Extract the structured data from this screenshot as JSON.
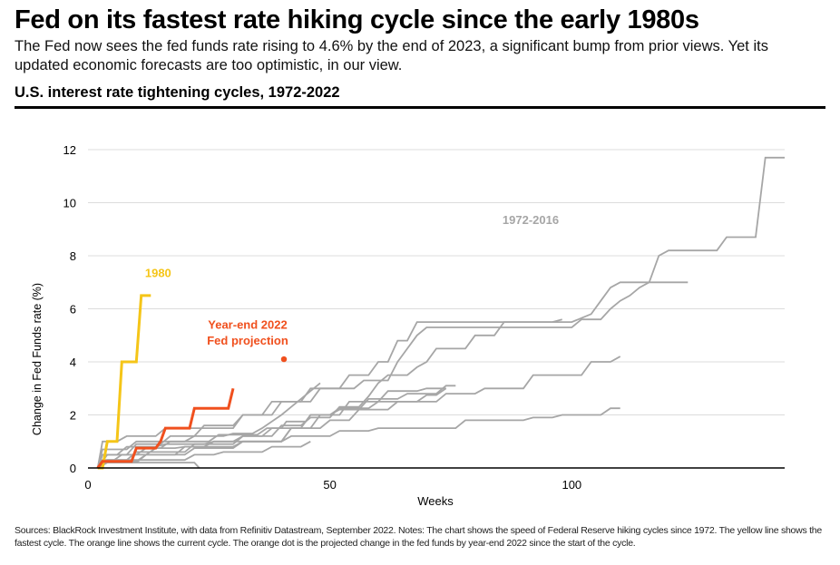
{
  "title": "Fed on its fastest rate hiking cycle since the early 1980s",
  "subtitle": "The Fed now sees the fed funds rate rising to 4.6% by the end of 2023, a significant bump from prior views. Yet its updated economic forecasts are too optimistic, in our view.",
  "section_title": "U.S. interest rate tightening cycles, 1972-2022",
  "footnote": "Sources: BlackRock Investment Institute, with data from Refinitiv Datastream, September 2022. Notes: The chart shows the speed of Federal Reserve hiking cycles since 1972. The yellow line shows the fastest cycle. The orange line shows the current cycle. The orange dot is the projected change in the fed funds by year-end 2022 since the start of the cycle.",
  "colors": {
    "gray": "#a6a6a6",
    "yellow": "#f5c518",
    "orange": "#f0501e",
    "axis": "#000000",
    "grid": "#dcdcdc"
  },
  "chart_data": {
    "type": "line",
    "xlabel": "Weeks",
    "ylabel": "Change in Fed Funds rate (%)",
    "xlim": [
      0,
      144
    ],
    "ylim": [
      0,
      12
    ],
    "x_ticks": [
      0,
      50,
      100
    ],
    "y_ticks": [
      0,
      2,
      4,
      6,
      8,
      10,
      12
    ],
    "grid": "horizontal",
    "annotations": [
      {
        "text": "1980",
        "color": "#f5c518",
        "x": 14.5,
        "y": 7.2
      },
      {
        "text": "Year-end 2022",
        "color": "#f0501e",
        "x": 33,
        "y": 5.25
      },
      {
        "text": "Fed projection",
        "color": "#f0501e",
        "x": 33,
        "y": 4.65
      },
      {
        "text": "1972-2016",
        "color": "#a6a6a6",
        "x": 91.5,
        "y": 9.2
      }
    ],
    "projection_point": {
      "x": 40.5,
      "y": 4.1
    },
    "series": [
      {
        "group": "1972-2016",
        "points": [
          [
            2,
            0
          ],
          [
            3,
            0.25
          ],
          [
            5,
            0.25
          ],
          [
            7,
            0.5
          ],
          [
            10,
            0.5
          ],
          [
            12,
            0.75
          ],
          [
            15,
            0.75
          ],
          [
            17,
            1
          ],
          [
            25,
            1
          ],
          [
            27,
            1.25
          ],
          [
            35,
            1.25
          ],
          [
            37,
            1.5
          ],
          [
            40,
            1.5
          ],
          [
            41,
            1.75
          ],
          [
            45,
            1.75
          ],
          [
            46,
            2
          ],
          [
            50,
            2
          ],
          [
            52,
            2.25
          ],
          [
            58,
            2.25
          ],
          [
            60,
            2.5
          ],
          [
            68,
            2.5
          ],
          [
            70,
            2.75
          ],
          [
            72,
            2.75
          ],
          [
            74,
            3
          ]
        ]
      },
      {
        "group": "1972-2016",
        "points": [
          [
            2,
            0
          ],
          [
            3,
            0.5
          ],
          [
            8,
            0.5
          ],
          [
            10,
            0.9
          ],
          [
            15,
            0.9
          ],
          [
            17,
            1.2
          ],
          [
            22,
            1.2
          ],
          [
            24,
            1.6
          ],
          [
            30,
            1.6
          ],
          [
            32,
            2
          ],
          [
            36,
            2
          ],
          [
            38,
            2.5
          ],
          [
            44,
            2.5
          ],
          [
            46,
            3
          ],
          [
            52,
            3
          ],
          [
            54,
            3.5
          ],
          [
            58,
            3.5
          ],
          [
            60,
            4
          ],
          [
            62,
            4
          ],
          [
            64,
            4.8
          ],
          [
            66,
            4.8
          ],
          [
            68,
            5.5
          ],
          [
            100,
            5.5
          ],
          [
            104,
            5.8
          ],
          [
            106,
            6.3
          ],
          [
            108,
            6.8
          ],
          [
            110,
            7
          ],
          [
            124,
            7
          ]
        ]
      },
      {
        "group": "1972-2016",
        "points": [
          [
            2,
            0
          ],
          [
            3,
            1
          ],
          [
            6,
            1
          ],
          [
            8,
            1.2
          ],
          [
            14,
            1.2
          ],
          [
            16,
            1.5
          ],
          [
            30,
            1.5
          ],
          [
            32,
            2
          ],
          [
            38,
            2
          ],
          [
            40,
            2.5
          ],
          [
            46,
            2.5
          ],
          [
            48,
            3
          ],
          [
            55,
            3
          ],
          [
            57,
            3.3
          ],
          [
            62,
            3.3
          ],
          [
            64,
            4
          ],
          [
            66,
            4.5
          ],
          [
            68,
            5
          ],
          [
            70,
            5.3
          ],
          [
            100,
            5.3
          ],
          [
            102,
            5.6
          ],
          [
            106,
            5.6
          ],
          [
            108,
            6
          ],
          [
            110,
            6.3
          ],
          [
            112,
            6.5
          ],
          [
            114,
            6.8
          ],
          [
            116,
            7
          ],
          [
            118,
            8
          ],
          [
            120,
            8.2
          ],
          [
            130,
            8.2
          ],
          [
            132,
            8.7
          ],
          [
            138,
            8.7
          ],
          [
            140,
            11.7
          ],
          [
            144,
            11.7
          ]
        ]
      },
      {
        "group": "1972-2016",
        "points": [
          [
            2,
            0
          ],
          [
            3,
            0.5
          ],
          [
            6,
            0.5
          ],
          [
            8,
            0.8
          ],
          [
            14,
            0.8
          ],
          [
            16,
            0.9
          ],
          [
            24,
            0.9
          ],
          [
            26,
            1
          ],
          [
            40,
            1
          ],
          [
            42,
            1.5
          ],
          [
            48,
            1.5
          ],
          [
            50,
            1.8
          ],
          [
            54,
            1.8
          ],
          [
            56,
            2.2
          ],
          [
            62,
            2.2
          ],
          [
            64,
            2.5
          ],
          [
            72,
            2.5
          ],
          [
            74,
            2.8
          ],
          [
            80,
            2.8
          ],
          [
            82,
            3
          ],
          [
            90,
            3
          ],
          [
            92,
            3.5
          ],
          [
            102,
            3.5
          ],
          [
            104,
            4
          ],
          [
            108,
            4
          ],
          [
            110,
            4.2
          ]
        ]
      },
      {
        "group": "1972-2016",
        "points": [
          [
            2,
            0
          ],
          [
            3,
            0.25
          ],
          [
            10,
            0.25
          ],
          [
            12,
            0.5
          ],
          [
            20,
            0.5
          ],
          [
            22,
            0.75
          ],
          [
            30,
            0.75
          ],
          [
            32,
            1
          ],
          [
            40,
            1
          ],
          [
            42,
            1.2
          ],
          [
            50,
            1.2
          ],
          [
            52,
            1.4
          ],
          [
            58,
            1.4
          ],
          [
            60,
            1.5
          ],
          [
            76,
            1.5
          ],
          [
            78,
            1.8
          ],
          [
            90,
            1.8
          ],
          [
            92,
            1.9
          ],
          [
            96,
            1.9
          ],
          [
            98,
            2
          ],
          [
            106,
            2
          ],
          [
            108,
            2.25
          ],
          [
            110,
            2.25
          ]
        ]
      },
      {
        "group": "1972-2016",
        "points": [
          [
            2,
            0
          ],
          [
            4,
            0.3
          ],
          [
            8,
            0.3
          ],
          [
            10,
            0.6
          ],
          [
            20,
            0.6
          ],
          [
            22,
            0.9
          ],
          [
            30,
            0.9
          ],
          [
            32,
            1.2
          ],
          [
            36,
            1.2
          ],
          [
            38,
            1.5
          ],
          [
            44,
            1.5
          ],
          [
            46,
            2
          ],
          [
            50,
            2
          ],
          [
            52,
            2.2
          ],
          [
            56,
            2.2
          ],
          [
            58,
            2.6
          ],
          [
            64,
            2.6
          ],
          [
            66,
            2.8
          ],
          [
            72,
            2.8
          ],
          [
            74,
            3.1
          ],
          [
            76,
            3.1
          ]
        ]
      },
      {
        "group": "1972-2016",
        "points": [
          [
            2,
            0
          ],
          [
            4,
            0.2
          ],
          [
            10,
            0.2
          ],
          [
            12,
            0.5
          ],
          [
            18,
            0.5
          ],
          [
            20,
            0.8
          ],
          [
            24,
            0.8
          ],
          [
            26,
            1
          ],
          [
            30,
            1
          ],
          [
            32,
            1.2
          ],
          [
            38,
            1.2
          ],
          [
            40,
            1.6
          ],
          [
            44,
            1.6
          ],
          [
            46,
            1.9
          ],
          [
            50,
            1.9
          ],
          [
            52,
            2.3
          ],
          [
            56,
            2.3
          ],
          [
            58,
            2.7
          ],
          [
            60,
            3.2
          ],
          [
            62,
            3.5
          ],
          [
            66,
            3.5
          ],
          [
            68,
            3.8
          ],
          [
            70,
            4
          ],
          [
            72,
            4.5
          ],
          [
            78,
            4.5
          ],
          [
            80,
            5
          ],
          [
            84,
            5
          ],
          [
            86,
            5.5
          ],
          [
            96,
            5.5
          ],
          [
            98,
            5.6
          ]
        ]
      },
      {
        "group": "1972-2016",
        "points": [
          [
            2,
            0
          ],
          [
            4,
            0.5
          ],
          [
            12,
            0.5
          ],
          [
            14,
            0.75
          ],
          [
            18,
            0.75
          ],
          [
            20,
            0.8
          ],
          [
            30,
            0.8
          ],
          [
            32,
            1
          ],
          [
            40,
            1
          ],
          [
            42,
            1.5
          ],
          [
            46,
            1.5
          ],
          [
            48,
            2
          ],
          [
            52,
            2
          ],
          [
            54,
            2.5
          ],
          [
            60,
            2.5
          ],
          [
            62,
            2.9
          ],
          [
            68,
            2.9
          ],
          [
            70,
            3
          ],
          [
            74,
            3
          ]
        ]
      },
      {
        "group": "1972-2016",
        "points": [
          [
            2,
            0
          ],
          [
            3,
            0.3
          ],
          [
            20,
            0.3
          ],
          [
            22,
            0.5
          ],
          [
            26,
            0.5
          ],
          [
            28,
            0.6
          ],
          [
            36,
            0.6
          ],
          [
            38,
            0.8
          ],
          [
            44,
            0.8
          ],
          [
            46,
            1
          ]
        ]
      },
      {
        "group": "1972-2016",
        "points": [
          [
            2,
            0
          ],
          [
            3,
            0.7
          ],
          [
            8,
            0.7
          ],
          [
            10,
            1
          ],
          [
            20,
            1
          ],
          [
            22,
            1.2
          ],
          [
            28,
            1.2
          ],
          [
            30,
            1.3
          ],
          [
            34,
            1.3
          ],
          [
            36,
            1.5
          ],
          [
            38,
            1.75
          ],
          [
            40,
            2
          ],
          [
            42,
            2.3
          ],
          [
            44,
            2.6
          ],
          [
            46,
            2.9
          ],
          [
            48,
            3.2
          ]
        ]
      },
      {
        "group": "1972-2016",
        "points": [
          [
            2,
            0
          ],
          [
            3,
            0.2
          ],
          [
            22,
            0.2
          ],
          [
            23,
            0
          ]
        ]
      },
      {
        "group": "1980",
        "color": "#f5c518",
        "points": [
          [
            2,
            0
          ],
          [
            3,
            0
          ],
          [
            4,
            1
          ],
          [
            6,
            1
          ],
          [
            7,
            4
          ],
          [
            10,
            4
          ],
          [
            11,
            6.5
          ],
          [
            13,
            6.5
          ]
        ]
      },
      {
        "group": "Current cycle",
        "color": "#f0501e",
        "points": [
          [
            2,
            0
          ],
          [
            3,
            0.25
          ],
          [
            9,
            0.25
          ],
          [
            10,
            0.75
          ],
          [
            14,
            0.75
          ],
          [
            15,
            1
          ],
          [
            16,
            1.5
          ],
          [
            21,
            1.5
          ],
          [
            22,
            2.25
          ],
          [
            29,
            2.25
          ],
          [
            30,
            3
          ]
        ]
      }
    ]
  }
}
